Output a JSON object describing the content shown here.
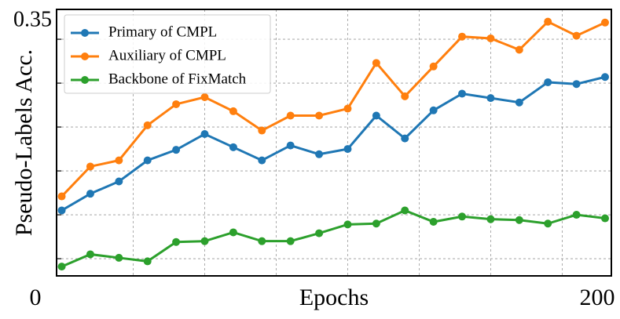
{
  "chart_data": {
    "type": "line",
    "ylabel": "Pseudo-Labels Acc.",
    "xlabel": "Epochs",
    "x": [
      10,
      20,
      30,
      40,
      50,
      60,
      70,
      80,
      90,
      100,
      110,
      120,
      130,
      140,
      150,
      160,
      170,
      180,
      190,
      200
    ],
    "series": [
      {
        "name": "Primary of CMPL",
        "color": "#1f77b4",
        "values": [
          0.155,
          0.174,
          0.188,
          0.212,
          0.224,
          0.242,
          0.227,
          0.212,
          0.229,
          0.219,
          0.225,
          0.263,
          0.237,
          0.269,
          0.288,
          0.283,
          0.278,
          0.301,
          0.299,
          0.307
        ]
      },
      {
        "name": "Auxiliary of CMPL",
        "color": "#ff7f0e",
        "values": [
          0.171,
          0.205,
          0.212,
          0.252,
          0.276,
          0.284,
          0.268,
          0.246,
          0.263,
          0.263,
          0.271,
          0.323,
          0.285,
          0.319,
          0.353,
          0.351,
          0.338,
          0.37,
          0.354,
          0.369
        ]
      },
      {
        "name": "Backbone of FixMatch",
        "color": "#2ca02c",
        "values": [
          0.091,
          0.105,
          0.101,
          0.097,
          0.119,
          0.12,
          0.13,
          0.12,
          0.12,
          0.129,
          0.139,
          0.14,
          0.155,
          0.142,
          0.148,
          0.145,
          0.144,
          0.14,
          0.15,
          0.146
        ]
      }
    ],
    "xlim": [
      8.2,
      202.2
    ],
    "xticks": [
      0,
      200
    ],
    "xgrid": [
      35,
      60,
      85,
      110,
      135,
      160,
      185
    ],
    "ylim": [
      0.0804,
      0.384
    ],
    "yticks": [
      0.1,
      0.15,
      0.2,
      0.25,
      0.3,
      0.35
    ],
    "ytick_labels": [
      0.35
    ],
    "grid": true,
    "legend": "upper left"
  }
}
